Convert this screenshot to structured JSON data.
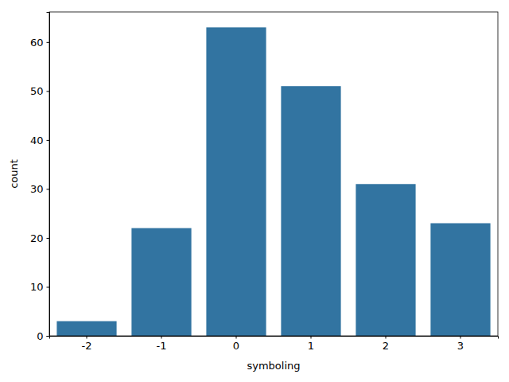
{
  "chart_data": {
    "type": "bar",
    "categories": [
      "-2",
      "-1",
      "0",
      "1",
      "2",
      "3"
    ],
    "values": [
      3,
      22,
      63,
      51,
      31,
      23
    ],
    "color": "#3274a1",
    "x_label": "symboling",
    "y_label": "count",
    "ylim": [
      0,
      66.15
    ],
    "yticks": [
      0,
      10,
      20,
      30,
      40,
      50,
      60
    ],
    "grid": false
  }
}
